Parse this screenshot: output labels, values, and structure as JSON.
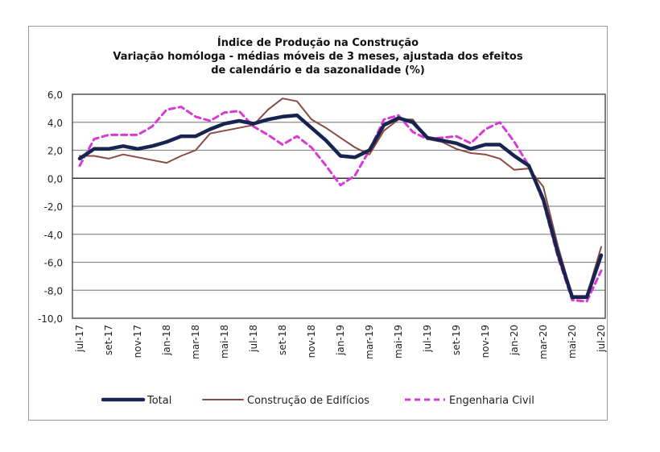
{
  "chart_data": {
    "type": "line",
    "title": "Índice de Produção na Construção",
    "subtitle_lines": [
      "Variação homóloga - médias móveis de 3 meses, ajustada dos efeitos",
      "de calendário e da sazonalidade (%)"
    ],
    "xlabel": "",
    "ylabel": "",
    "ylim": [
      -10,
      6
    ],
    "yticks": [
      6,
      4,
      2,
      0,
      -2,
      -4,
      -6,
      -8,
      -10
    ],
    "ytick_labels": [
      "6,0",
      "4,0",
      "2,0",
      "0,0",
      "-2,0",
      "-4,0",
      "-6,0",
      "-8,0",
      "-10,0"
    ],
    "grid": true,
    "legend_position": "bottom",
    "x": [
      "jul-17",
      "ago-17",
      "set-17",
      "out-17",
      "nov-17",
      "dez-17",
      "jan-18",
      "fev-18",
      "mar-18",
      "abr-18",
      "mai-18",
      "jun-18",
      "jul-18",
      "ago-18",
      "set-18",
      "out-18",
      "nov-18",
      "dez-18",
      "jan-19",
      "fev-19",
      "mar-19",
      "abr-19",
      "mai-19",
      "jun-19",
      "jul-19",
      "ago-19",
      "set-19",
      "out-19",
      "nov-19",
      "dez-19",
      "jan-20",
      "fev-20",
      "mar-20",
      "abr-20",
      "mai-20",
      "jun-20",
      "jul-20"
    ],
    "xtick_labels": [
      "jul-17",
      "set-17",
      "nov-17",
      "jan-18",
      "mar-18",
      "mai-18",
      "jul-18",
      "set-18",
      "nov-18",
      "jan-19",
      "mar-19",
      "mai-19",
      "jul-19",
      "set-19",
      "nov-19",
      "jan-20",
      "mar-20",
      "mai-20",
      "jul-20"
    ],
    "series": [
      {
        "name": "Total",
        "color": "#17244f",
        "style": "solid-thick",
        "values": [
          1.4,
          2.1,
          2.1,
          2.3,
          2.1,
          2.3,
          2.6,
          3.0,
          3.0,
          3.5,
          3.9,
          4.1,
          3.9,
          4.2,
          4.4,
          4.5,
          3.6,
          2.7,
          1.6,
          1.5,
          2.0,
          3.8,
          4.3,
          4.0,
          2.9,
          2.7,
          2.5,
          2.1,
          2.4,
          2.4,
          1.6,
          0.9,
          -1.5,
          -5.3,
          -8.5,
          -8.5,
          -5.5
        ]
      },
      {
        "name": "Construção de Edifícios",
        "color": "#8b4a44",
        "style": "solid-thin",
        "values": [
          1.6,
          1.6,
          1.4,
          1.7,
          1.5,
          1.3,
          1.1,
          1.6,
          2.0,
          3.2,
          3.4,
          3.6,
          3.8,
          4.9,
          5.7,
          5.5,
          4.2,
          3.6,
          2.9,
          2.2,
          1.7,
          3.4,
          4.2,
          4.2,
          2.8,
          2.6,
          2.1,
          1.8,
          1.7,
          1.4,
          0.6,
          0.7,
          -0.6,
          -4.8,
          -8.4,
          -8.4,
          -4.9
        ]
      },
      {
        "name": "Engenharia Civil",
        "color": "#d63bd6",
        "style": "dashed",
        "values": [
          0.9,
          2.8,
          3.1,
          3.1,
          3.1,
          3.7,
          4.9,
          5.1,
          4.4,
          4.1,
          4.7,
          4.8,
          3.7,
          3.1,
          2.4,
          3.0,
          2.2,
          0.9,
          -0.5,
          0.2,
          2.0,
          4.2,
          4.5,
          3.3,
          2.8,
          2.9,
          3.0,
          2.5,
          3.5,
          4.0,
          2.6,
          0.9,
          -1.7,
          -5.6,
          -8.7,
          -8.8,
          -6.6
        ]
      }
    ]
  }
}
